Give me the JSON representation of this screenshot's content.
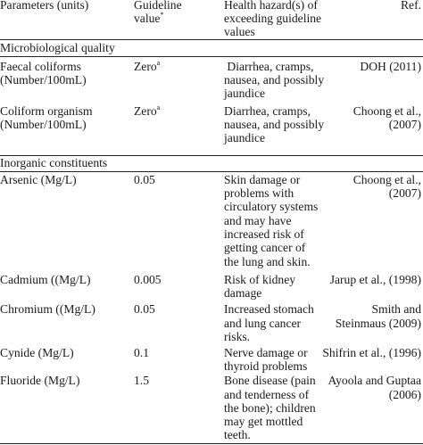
{
  "header": {
    "parameters": "Parameters (units)",
    "guideline_line1": "Guideline",
    "guideline_line2": "value",
    "guideline_mark": "*",
    "hazard_line1": "Health hazard(s) of",
    "hazard_line2": "exceeding guideline",
    "hazard_line3": "values",
    "ref": "Ref."
  },
  "sections": [
    {
      "title": "Microbiological quality",
      "rows": [
        {
          "param": [
            "Faecal coliforms",
            "(Number/100mL)"
          ],
          "value": "Zero",
          "mark": "a",
          "hazard": [
            " Diarrhea, cramps,",
            "nausea, and possibly",
            "jaundice"
          ],
          "ref": [
            "DOH (2011)"
          ]
        },
        {
          "param": [
            "Coliform organism",
            "(Number/100mL)"
          ],
          "value": "Zero",
          "mark": "a",
          "hazard": [
            "Diarrhea, cramps,",
            "nausea, and possibly",
            "jaundice"
          ],
          "ref": [
            "Choong et al.,",
            "(2007)"
          ]
        }
      ]
    },
    {
      "title": "Inorganic constituents",
      "rows": [
        {
          "param": [
            "Arsenic (Mg/L)"
          ],
          "value": "0.05",
          "hazard": [
            "Skin damage or",
            "problems with",
            "circulatory systems",
            "and may have",
            "increased risk of",
            "getting cancer of",
            "the lung and skin."
          ],
          "ref": [
            "Choong et al.,",
            "(2007)"
          ]
        },
        {
          "param": [
            "Cadmium ((Mg/L)"
          ],
          "value": "0.005",
          "hazard": [
            "Risk of kidney",
            "damage"
          ],
          "ref": [
            "Jarup et al., (1998)"
          ]
        },
        {
          "param": [
            "Chromium ((Mg/L)"
          ],
          "value": "0.05",
          "hazard": [
            "Increased stomach",
            "and lung cancer",
            "risks."
          ],
          "ref": [
            "Smith and",
            "Steinmaus (2009)"
          ]
        },
        {
          "param": [
            "Cynide (Mg/L)"
          ],
          "value": "0.1",
          "hazard": [
            "Nerve damage or",
            "thyroid problems"
          ],
          "ref": [
            "Shifrin et al., (1996)"
          ]
        },
        {
          "param": [
            "Fluoride (Mg/L)"
          ],
          "value": "1.5",
          "hazard": [
            "Bone disease (pain",
            "and tenderness of",
            "the bone); children",
            "may get mottled",
            "teeth."
          ],
          "ref": [
            "Ayoola and Guptaa",
            "(2006)"
          ]
        }
      ]
    }
  ]
}
